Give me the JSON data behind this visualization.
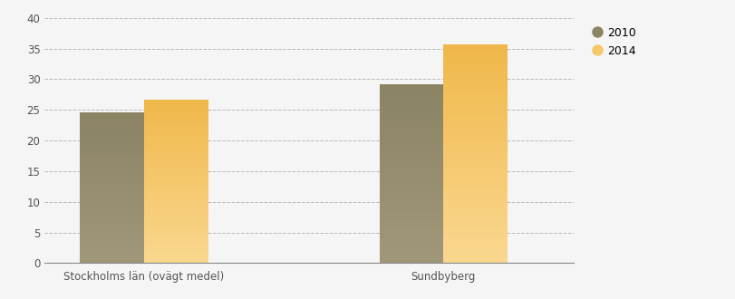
{
  "categories": [
    "Stockholms län (ovägt medel)",
    "Sundbyberg"
  ],
  "values_2010": [
    24.5,
    29.0
  ],
  "values_2014": [
    26.5,
    35.5
  ],
  "color_2010": "#8B8464",
  "color_2014": "#F5C96A",
  "legend_labels": [
    "2010",
    "2014"
  ],
  "ylim": [
    0,
    40
  ],
  "yticks": [
    0,
    5,
    10,
    15,
    20,
    25,
    30,
    35,
    40
  ],
  "bar_width": 0.32,
  "background_color": "#F5F5F5",
  "plot_bg_color": "#F5F5F5",
  "grid_color": "#AAAAAA",
  "axis_color": "#888888",
  "tick_fontsize": 8.5,
  "legend_fontsize": 9,
  "label_fontsize": 8.5,
  "group_positions": [
    0.5,
    2.0
  ]
}
